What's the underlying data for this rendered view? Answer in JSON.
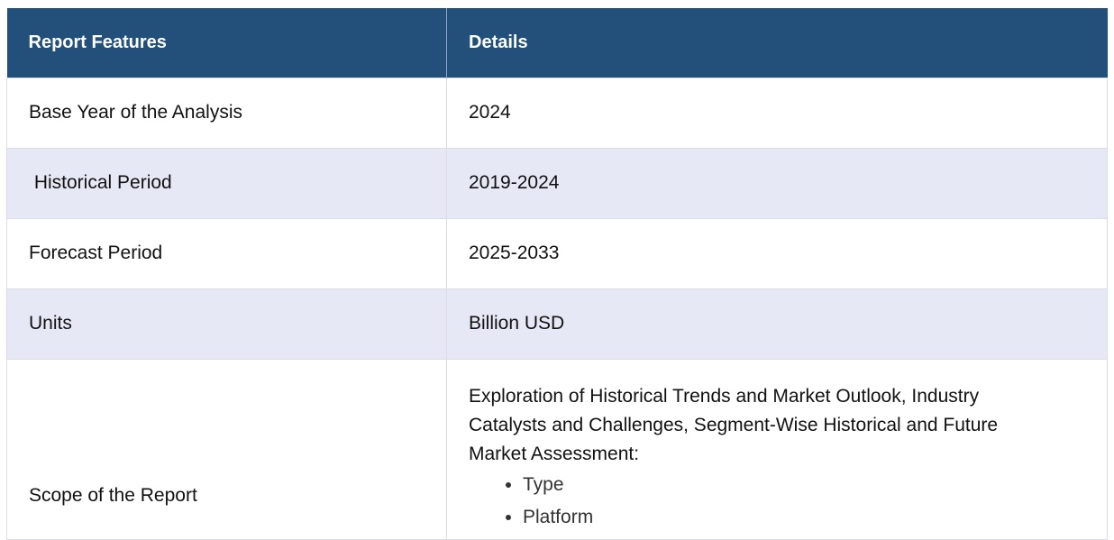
{
  "table": {
    "headers": [
      "Report Features",
      "Details"
    ],
    "rows": [
      {
        "feature": "Base Year of the Analysis",
        "detail": "2024"
      },
      {
        "feature": " Historical Period",
        "detail": "2019-2024"
      },
      {
        "feature": "Forecast Period",
        "detail": "2025-2033"
      },
      {
        "feature": "Units",
        "detail": "Billion USD"
      }
    ],
    "scope": {
      "feature": "Scope of the Report",
      "description": "Exploration of Historical Trends and Market Outlook, Industry Catalysts and Challenges, Segment-Wise Historical and Future Market Assessment:",
      "items": [
        "Type",
        "Platform"
      ]
    }
  },
  "colors": {
    "header_bg": "#22507a",
    "header_text": "#ffffff",
    "alt_row_bg": "#e6e9f5"
  }
}
